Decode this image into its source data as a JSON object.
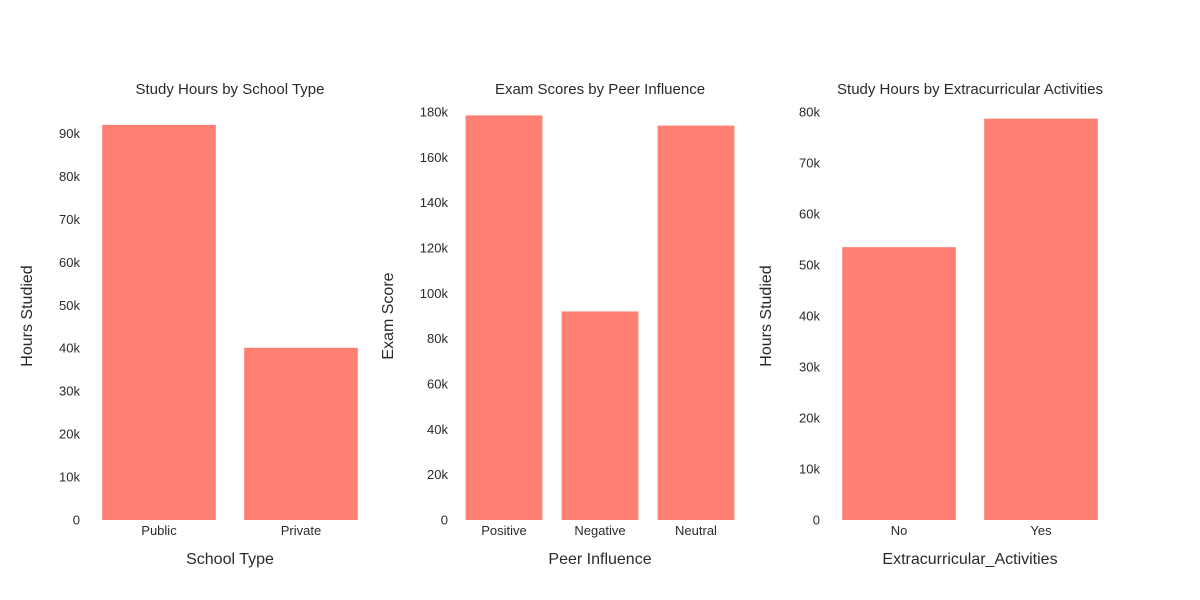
{
  "bar_color": "#FF7F72",
  "chart_data": [
    {
      "type": "bar",
      "title": "Study Hours by School Type",
      "xlabel": "School Type",
      "ylabel": "Hours Studied",
      "categories": [
        "Public",
        "Private"
      ],
      "values": [
        92000,
        40100
      ],
      "ylim": [
        0,
        95000
      ],
      "yticks": [
        0,
        10000,
        20000,
        30000,
        40000,
        50000,
        60000,
        70000,
        80000,
        90000
      ],
      "ytick_labels": [
        "0",
        "10k",
        "20k",
        "30k",
        "40k",
        "50k",
        "60k",
        "70k",
        "80k",
        "90k"
      ],
      "grid": false
    },
    {
      "type": "bar",
      "title": "Exam Scores by Peer Influence",
      "xlabel": "Peer Influence",
      "ylabel": "Exam Score",
      "categories": [
        "Positive",
        "Negative",
        "Neutral"
      ],
      "values": [
        178500,
        92000,
        174000
      ],
      "ylim": [
        0,
        180000
      ],
      "yticks": [
        0,
        20000,
        40000,
        60000,
        80000,
        100000,
        120000,
        140000,
        160000,
        180000
      ],
      "ytick_labels": [
        "0",
        "20k",
        "40k",
        "60k",
        "80k",
        "100k",
        "120k",
        "140k",
        "160k",
        "180k"
      ],
      "grid": false
    },
    {
      "type": "bar",
      "title": "Study Hours by Extracurricular Activities",
      "xlabel": "Extracurricular_Activities",
      "ylabel": "Hours Studied",
      "categories": [
        "No",
        "Yes"
      ],
      "values": [
        53500,
        78700
      ],
      "ylim": [
        0,
        80000
      ],
      "yticks": [
        0,
        10000,
        20000,
        30000,
        40000,
        50000,
        60000,
        70000,
        80000
      ],
      "ytick_labels": [
        "0",
        "10k",
        "20k",
        "30k",
        "40k",
        "50k",
        "60k",
        "70k",
        "80k"
      ],
      "grid": false
    }
  ]
}
